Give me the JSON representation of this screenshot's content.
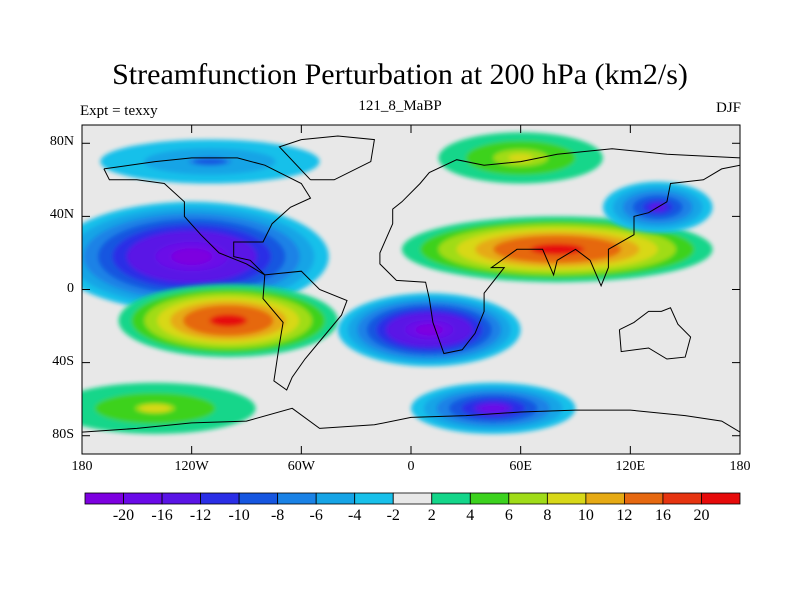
{
  "title": "Streamfunction Perturbation at 200 hPa (km2/s)",
  "subtitle_left": "Expt = texxy",
  "subtitle_center": "121_8_MaBP",
  "subtitle_right": "DJF",
  "lat_ticks": [
    "80N",
    "40N",
    "0",
    "40S",
    "80S"
  ],
  "lon_ticks": [
    "180",
    "120W",
    "60W",
    "0",
    "60E",
    "120E",
    "180"
  ],
  "colorbar": {
    "labels": [
      "-20",
      "-16",
      "-12",
      "-10",
      "-8",
      "-6",
      "-4",
      "-2",
      "2",
      "4",
      "6",
      "8",
      "10",
      "12",
      "16",
      "20"
    ],
    "colors": [
      "#7d00e0",
      "#6a0ae8",
      "#5a14e6",
      "#2a2ee6",
      "#1656e0",
      "#1a82e6",
      "#16a4e6",
      "#18c0ea",
      "#e8e8e8",
      "#14d68a",
      "#3cd21e",
      "#a0dc18",
      "#d8d818",
      "#e6aa14",
      "#e66810",
      "#e63410",
      "#e60a0a"
    ]
  },
  "chart_data": {
    "type": "heatmap",
    "title": "Streamfunction Perturbation at 200 hPa (km2/s)",
    "variable": "Streamfunction Perturbation at 200 hPa",
    "units": "km2/s",
    "experiment": "texxy",
    "case": "121_8_MaBP",
    "season": "DJF",
    "lon_range": [
      -180,
      180
    ],
    "lat_range": [
      -90,
      90
    ],
    "contour_levels": [
      -20,
      -16,
      -12,
      -10,
      -8,
      -6,
      -4,
      -2,
      2,
      4,
      6,
      8,
      10,
      12,
      16,
      20
    ],
    "features": [
      {
        "name": "low-north-pacific",
        "lon": -120,
        "lat": 18,
        "value": -20
      },
      {
        "name": "high-south-pacific",
        "lon": -100,
        "lat": -17,
        "value": 18
      },
      {
        "name": "high-tropical-indian",
        "lon": 80,
        "lat": 22,
        "value": 18
      },
      {
        "name": "low-south-atlantic",
        "lon": 10,
        "lat": -22,
        "value": -20
      },
      {
        "name": "low-southern-indian",
        "lon": 45,
        "lat": -65,
        "value": -14
      },
      {
        "name": "low-northeast-asia",
        "lon": 135,
        "lat": 45,
        "value": -12
      },
      {
        "name": "high-arctic-eurasia",
        "lon": 60,
        "lat": 72,
        "value": 7
      },
      {
        "name": "low-arctic-america",
        "lon": -110,
        "lat": 70,
        "value": -6
      },
      {
        "name": "high-southern-pacific",
        "lon": -140,
        "lat": -65,
        "value": 6
      }
    ]
  }
}
